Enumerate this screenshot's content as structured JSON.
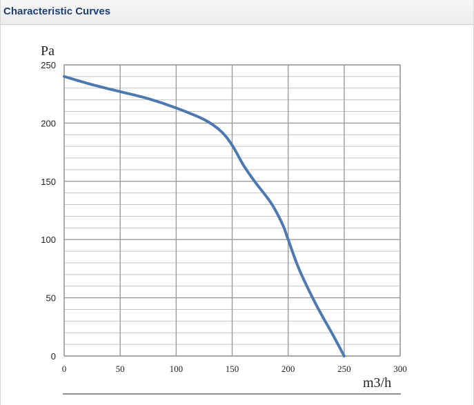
{
  "header": {
    "title": "Characteristic Curves"
  },
  "colors": {
    "curve": "#4e79b0",
    "grid_major": "#9a9a9a",
    "grid_minor": "#c4c4c4",
    "title": "#1d3f73"
  },
  "chart_data": {
    "type": "line",
    "xlabel": "m3/h",
    "ylabel": "Pa",
    "xlim": [
      0,
      300
    ],
    "ylim": [
      0,
      250
    ],
    "x_ticks": [
      "0",
      "50",
      "100",
      "150",
      "200",
      "250",
      "300"
    ],
    "y_ticks": [
      "0",
      "50",
      "100",
      "150",
      "200",
      "250"
    ],
    "grid": true,
    "series": [
      {
        "x": [
          0,
          25,
          50,
          75,
          100,
          125,
          140,
          150,
          160,
          170,
          185,
          195,
          200,
          210,
          225,
          240,
          250
        ],
        "y": [
          240,
          233,
          227,
          221,
          213,
          203,
          193,
          181,
          164,
          150,
          131,
          113,
          100,
          74,
          44,
          18,
          0
        ]
      }
    ]
  }
}
